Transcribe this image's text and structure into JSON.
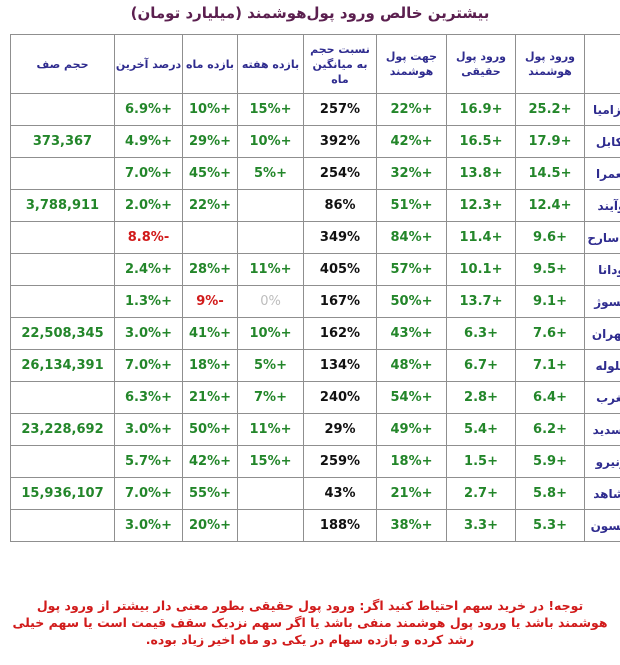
{
  "title": "بیشترین خالص ورود پول‌هوشمند (میلیارد تومان)",
  "headers": {
    "name": "",
    "smart_money_in": "ورود پول هوشمند",
    "real_money_in": "ورود پول حقیقی",
    "smart_money_dir": "جهت پول هوشمند",
    "volume_ratio": "نسبت حجم به میانگین ماه",
    "week_return": "بازده هفته",
    "month_return": "بازده ماه",
    "last_pct": "درصد آخرین",
    "queue_volume": "حجم صف"
  },
  "rows": [
    {
      "name": "خزامیا",
      "smart": "+25.2",
      "real": "+16.9",
      "dir": "+22%",
      "ratio": "257%",
      "week": "+15%",
      "month": "+10%",
      "last": "+6.9%",
      "queue": ""
    },
    {
      "name": "بکابل",
      "smart": "+17.9",
      "real": "+16.5",
      "dir": "+42%",
      "ratio": "392%",
      "week": "+10%",
      "month": "+29%",
      "last": "+4.9%",
      "queue": "373,367"
    },
    {
      "name": "ثعمرا",
      "smart": "+14.5",
      "real": "+13.8",
      "dir": "+32%",
      "ratio": "254%",
      "week": "+5%",
      "month": "+45%",
      "last": "+7.0%",
      "queue": ""
    },
    {
      "name": "وآیند",
      "smart": "+12.4",
      "real": "+12.3",
      "dir": "+51%",
      "ratio": "86%",
      "week": "",
      "month": "+22%",
      "last": "+2.0%",
      "queue": "3,788,911"
    },
    {
      "name": "وپاسارح",
      "smart": "+9.6",
      "real": "+11.4",
      "dir": "+84%",
      "ratio": "349%",
      "week": "",
      "month": "",
      "last": "-8.8%",
      "queue": ""
    },
    {
      "name": "ودانا",
      "smart": "+9.5",
      "real": "+10.1",
      "dir": "+57%",
      "ratio": "405%",
      "week": "+11%",
      "month": "+28%",
      "last": "+2.4%",
      "queue": ""
    },
    {
      "name": "فسوژ",
      "smart": "+9.1",
      "real": "+13.7",
      "dir": "+50%",
      "ratio": "167%",
      "week": "0%",
      "month": "-9%",
      "last": "+1.3%",
      "queue": ""
    },
    {
      "name": "بتهران",
      "smart": "+7.6",
      "real": "+6.3",
      "dir": "+43%",
      "ratio": "162%",
      "week": "+10%",
      "month": "+41%",
      "last": "+3.0%",
      "queue": "22,508,345"
    },
    {
      "name": "فلوله",
      "smart": "+7.1",
      "real": "+6.7",
      "dir": "+48%",
      "ratio": "134%",
      "week": "+5%",
      "month": "+18%",
      "last": "+7.0%",
      "queue": "26,134,391"
    },
    {
      "name": "ثغرب",
      "smart": "+6.4",
      "real": "+2.8",
      "dir": "+54%",
      "ratio": "240%",
      "week": "+7%",
      "month": "+21%",
      "last": "+6.3%",
      "queue": ""
    },
    {
      "name": "وسدید",
      "smart": "+6.2",
      "real": "+5.4",
      "dir": "+49%",
      "ratio": "29%",
      "week": "+11%",
      "month": "+50%",
      "last": "+3.0%",
      "queue": "23,228,692"
    },
    {
      "name": "ونیرو",
      "smart": "+5.9",
      "real": "+1.5",
      "dir": "+18%",
      "ratio": "259%",
      "week": "+15%",
      "month": "+42%",
      "last": "+5.7%",
      "queue": ""
    },
    {
      "name": "ثشاهد",
      "smart": "+5.8",
      "real": "+2.7",
      "dir": "+21%",
      "ratio": "43%",
      "week": "",
      "month": "+55%",
      "last": "+7.0%",
      "queue": "15,936,107"
    },
    {
      "name": "کیسون",
      "smart": "+5.3",
      "real": "+3.3",
      "dir": "+38%",
      "ratio": "188%",
      "week": "",
      "month": "+20%",
      "last": "+3.0%",
      "queue": ""
    }
  ],
  "note": "توجه! در خرید سهم احتیاط کنید اگر: ورود پول حقیقی بطور معنی دار بیشتر از ورود پول هوشمند باشد یا ورود پول هوشمند منفی باشد یا اگر سهم نزدیک سقف قیمت است یا سهم خیلی رشد کرده و بازده سهام در یکی دو ماه اخیر زیاد بوده.",
  "colors": {
    "title": "#5b1f4f",
    "header": "#2f2c8f",
    "positive": "#23862a",
    "negative": "#d11a1a",
    "neutral": "#bdbdbd",
    "note": "#d11a1a"
  }
}
